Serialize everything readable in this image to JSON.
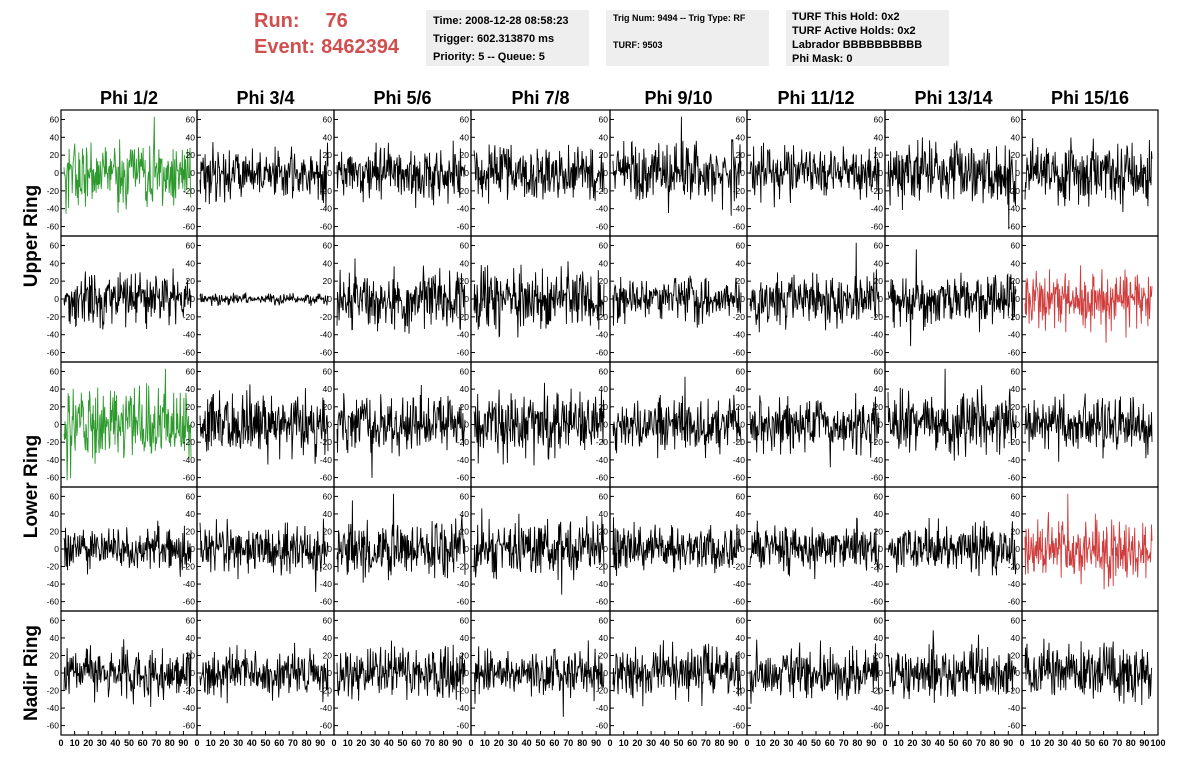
{
  "header": {
    "run_label": "Run:",
    "run_value": "76",
    "event_label": "Event:",
    "event_value": "8462394",
    "time_text": "Time: 2008-12-28 08:58:23",
    "trigger_text": "Trigger: 602.313870 ms",
    "priority_text": "Priority: 5 -- Queue: 5",
    "trig_num_text": "Trig Num: 9494 -- Trig Type: RF",
    "turf_text": "TURF: 9503",
    "turf_hold_text": "TURF This Hold: 0x2",
    "turf_active_text": "TURF Active Holds: 0x2",
    "labrador_text": "Labrador BBBBBBBBBB",
    "phi_mask_text": "Phi Mask: 0"
  },
  "colors": {
    "title_red": "#d0504f",
    "box_bg": "#eeeeee",
    "trace_default": "#000000",
    "trace_green": "#2e9a2e",
    "trace_red": "#d03b3b"
  },
  "chart_data": {
    "type": "line",
    "columns": [
      "Phi 1/2",
      "Phi 3/4",
      "Phi 5/6",
      "Phi 7/8",
      "Phi 9/10",
      "Phi 11/12",
      "Phi 13/14",
      "Phi 15/16"
    ],
    "rows": [
      "Upper Ring",
      "Upper Ring",
      "Lower Ring",
      "Lower Ring",
      "Nadir Ring"
    ],
    "row_labels": [
      "Upper Ring",
      "Lower Ring",
      "Nadir Ring"
    ],
    "ylim": [
      -65,
      65
    ],
    "yticks": [
      "60",
      "40",
      "20",
      "0",
      "-20",
      "-40",
      "-60"
    ],
    "xlim": [
      0,
      100
    ],
    "xtick_labels": [
      "0",
      "10",
      "20",
      "30",
      "40",
      "50",
      "60",
      "70",
      "80",
      "90",
      "100"
    ],
    "sample_count": 250,
    "amplitude_estimates": [
      [
        18,
        14,
        15,
        15,
        17,
        14,
        16,
        16
      ],
      [
        14,
        3,
        16,
        17,
        12,
        15,
        14,
        17
      ],
      [
        20,
        17,
        17,
        18,
        15,
        14,
        17,
        15
      ],
      [
        12,
        14,
        16,
        16,
        13,
        13,
        13,
        17
      ],
      [
        14,
        13,
        14,
        14,
        14,
        14,
        14,
        15
      ]
    ],
    "highlighted": [
      {
        "row": 0,
        "col": 0,
        "color": "green"
      },
      {
        "row": 2,
        "col": 0,
        "color": "green"
      },
      {
        "row": 1,
        "col": 7,
        "color": "red"
      },
      {
        "row": 3,
        "col": 7,
        "color": "red"
      }
    ]
  }
}
